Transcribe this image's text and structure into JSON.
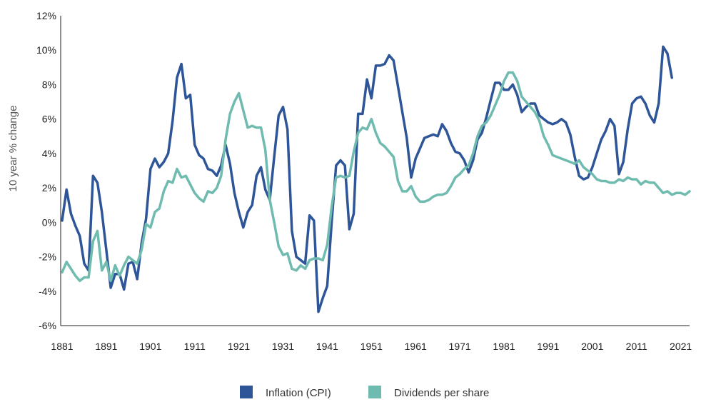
{
  "chart_data": {
    "type": "line",
    "title": "",
    "xlabel": "",
    "ylabel": "10 year % change",
    "xlim": [
      1881,
      2023
    ],
    "ylim": [
      -6,
      12
    ],
    "x_ticks": [
      {
        "value": 1881,
        "label": "1881"
      },
      {
        "value": 1891,
        "label": "1891"
      },
      {
        "value": 1901,
        "label": "1901"
      },
      {
        "value": 1911,
        "label": "1911"
      },
      {
        "value": 1921,
        "label": "1921"
      },
      {
        "value": 1931,
        "label": "1931"
      },
      {
        "value": 1941,
        "label": "1941"
      },
      {
        "value": 1951,
        "label": "1951"
      },
      {
        "value": 1961,
        "label": "1961"
      },
      {
        "value": 1971,
        "label": "1971"
      },
      {
        "value": 1981,
        "label": "1981"
      },
      {
        "value": 1991,
        "label": "1991"
      },
      {
        "value": 2001,
        "label": "2001"
      },
      {
        "value": 2011,
        "label": "2011"
      },
      {
        "value": 2021,
        "label": "2021"
      }
    ],
    "y_ticks": [
      {
        "value": 12,
        "label": "12%"
      },
      {
        "value": 10,
        "label": "10%"
      },
      {
        "value": 8,
        "label": "8%"
      },
      {
        "value": 6,
        "label": "6%"
      },
      {
        "value": 4,
        "label": "4%"
      },
      {
        "value": 2,
        "label": "2%"
      },
      {
        "value": 0,
        "label": "0%"
      },
      {
        "value": -2,
        "label": "-2%"
      },
      {
        "value": -4,
        "label": "-4%"
      },
      {
        "value": -6,
        "label": "-6%"
      }
    ],
    "legend_position": "bottom-center",
    "series": [
      {
        "name": "Inflation (CPI)",
        "color": "#2e5597",
        "points": [
          [
            1881,
            0.1
          ],
          [
            1882,
            1.9
          ],
          [
            1883,
            0.5
          ],
          [
            1884,
            -0.2
          ],
          [
            1885,
            -0.8
          ],
          [
            1886,
            -2.4
          ],
          [
            1887,
            -2.8
          ],
          [
            1888,
            2.7
          ],
          [
            1889,
            2.3
          ],
          [
            1890,
            0.6
          ],
          [
            1891,
            -1.6
          ],
          [
            1892,
            -3.8
          ],
          [
            1893,
            -3.0
          ],
          [
            1894,
            -3.0
          ],
          [
            1895,
            -3.9
          ],
          [
            1896,
            -2.4
          ],
          [
            1897,
            -2.3
          ],
          [
            1898,
            -3.3
          ],
          [
            1899,
            -1.2
          ],
          [
            1900,
            0.2
          ],
          [
            1901,
            3.1
          ],
          [
            1902,
            3.7
          ],
          [
            1903,
            3.2
          ],
          [
            1904,
            3.5
          ],
          [
            1905,
            4.0
          ],
          [
            1906,
            5.9
          ],
          [
            1907,
            8.4
          ],
          [
            1908,
            9.2
          ],
          [
            1909,
            7.2
          ],
          [
            1910,
            7.4
          ],
          [
            1911,
            4.5
          ],
          [
            1912,
            3.9
          ],
          [
            1913,
            3.7
          ],
          [
            1914,
            3.1
          ],
          [
            1915,
            3.0
          ],
          [
            1916,
            2.7
          ],
          [
            1917,
            3.3
          ],
          [
            1918,
            4.5
          ],
          [
            1919,
            3.4
          ],
          [
            1920,
            1.7
          ],
          [
            1921,
            0.6
          ],
          [
            1922,
            -0.3
          ],
          [
            1923,
            0.6
          ],
          [
            1924,
            1.0
          ],
          [
            1925,
            2.7
          ],
          [
            1926,
            3.2
          ],
          [
            1927,
            1.9
          ],
          [
            1928,
            1.3
          ],
          [
            1929,
            3.8
          ],
          [
            1930,
            6.2
          ],
          [
            1931,
            6.7
          ],
          [
            1932,
            5.4
          ],
          [
            1933,
            -0.5
          ],
          [
            1934,
            -2.0
          ],
          [
            1935,
            -2.2
          ],
          [
            1936,
            -2.4
          ],
          [
            1937,
            0.4
          ],
          [
            1938,
            0.1
          ],
          [
            1939,
            -5.2
          ],
          [
            1940,
            -4.4
          ],
          [
            1941,
            -3.7
          ],
          [
            1942,
            0.0
          ],
          [
            1943,
            3.3
          ],
          [
            1944,
            3.6
          ],
          [
            1945,
            3.3
          ],
          [
            1946,
            -0.4
          ],
          [
            1947,
            0.5
          ],
          [
            1948,
            6.3
          ],
          [
            1949,
            6.3
          ],
          [
            1950,
            8.3
          ],
          [
            1951,
            7.2
          ],
          [
            1952,
            9.1
          ],
          [
            1953,
            9.1
          ],
          [
            1954,
            9.2
          ],
          [
            1955,
            9.7
          ],
          [
            1956,
            9.4
          ],
          [
            1957,
            7.9
          ],
          [
            1958,
            6.4
          ],
          [
            1959,
            4.9
          ],
          [
            1960,
            2.6
          ],
          [
            1961,
            3.7
          ],
          [
            1962,
            4.3
          ],
          [
            1963,
            4.9
          ],
          [
            1964,
            5.0
          ],
          [
            1965,
            5.1
          ],
          [
            1966,
            5.0
          ],
          [
            1967,
            5.7
          ],
          [
            1968,
            5.3
          ],
          [
            1969,
            4.6
          ],
          [
            1970,
            4.1
          ],
          [
            1971,
            4.0
          ],
          [
            1972,
            3.6
          ],
          [
            1973,
            2.9
          ],
          [
            1974,
            3.6
          ],
          [
            1975,
            4.8
          ],
          [
            1976,
            5.2
          ],
          [
            1977,
            6.1
          ],
          [
            1978,
            7.1
          ],
          [
            1979,
            8.1
          ],
          [
            1980,
            8.1
          ],
          [
            1981,
            7.7
          ],
          [
            1982,
            7.7
          ],
          [
            1983,
            8.0
          ],
          [
            1984,
            7.4
          ],
          [
            1985,
            6.4
          ],
          [
            1986,
            6.7
          ],
          [
            1987,
            6.9
          ],
          [
            1988,
            6.9
          ],
          [
            1989,
            6.2
          ],
          [
            1990,
            6.0
          ],
          [
            1991,
            5.8
          ],
          [
            1992,
            5.7
          ],
          [
            1993,
            5.8
          ],
          [
            1994,
            6.0
          ],
          [
            1995,
            5.8
          ],
          [
            1996,
            5.1
          ],
          [
            1997,
            3.8
          ],
          [
            1998,
            2.7
          ],
          [
            1999,
            2.5
          ],
          [
            2000,
            2.6
          ],
          [
            2001,
            3.2
          ],
          [
            2002,
            4.0
          ],
          [
            2003,
            4.8
          ],
          [
            2004,
            5.3
          ],
          [
            2005,
            6.0
          ],
          [
            2006,
            5.6
          ],
          [
            2007,
            2.8
          ],
          [
            2008,
            3.5
          ],
          [
            2009,
            5.4
          ],
          [
            2010,
            6.9
          ],
          [
            2011,
            7.2
          ],
          [
            2012,
            7.3
          ],
          [
            2013,
            6.9
          ],
          [
            2014,
            6.2
          ],
          [
            2015,
            5.8
          ],
          [
            2016,
            6.9
          ],
          [
            2017,
            10.2
          ],
          [
            2018,
            9.8
          ],
          [
            2019,
            8.4
          ]
        ]
      },
      {
        "name": "Dividends per share",
        "color": "#6fbbaf",
        "points": [
          [
            1881,
            -2.9
          ],
          [
            1882,
            -2.3
          ],
          [
            1883,
            -2.7
          ],
          [
            1884,
            -3.1
          ],
          [
            1885,
            -3.4
          ],
          [
            1886,
            -3.2
          ],
          [
            1887,
            -3.2
          ],
          [
            1888,
            -1.1
          ],
          [
            1889,
            -0.5
          ],
          [
            1890,
            -2.8
          ],
          [
            1891,
            -2.3
          ],
          [
            1892,
            -3.4
          ],
          [
            1893,
            -2.5
          ],
          [
            1894,
            -3.1
          ],
          [
            1895,
            -2.5
          ],
          [
            1896,
            -2.0
          ],
          [
            1897,
            -2.2
          ],
          [
            1898,
            -2.4
          ],
          [
            1899,
            -1.6
          ],
          [
            1900,
            -0.1
          ],
          [
            1901,
            -0.3
          ],
          [
            1902,
            0.6
          ],
          [
            1903,
            0.8
          ],
          [
            1904,
            1.8
          ],
          [
            1905,
            2.4
          ],
          [
            1906,
            2.3
          ],
          [
            1907,
            3.1
          ],
          [
            1908,
            2.6
          ],
          [
            1909,
            2.7
          ],
          [
            1910,
            2.2
          ],
          [
            1911,
            1.7
          ],
          [
            1912,
            1.4
          ],
          [
            1913,
            1.2
          ],
          [
            1914,
            1.8
          ],
          [
            1915,
            1.7
          ],
          [
            1916,
            2.0
          ],
          [
            1917,
            2.7
          ],
          [
            1918,
            4.8
          ],
          [
            1919,
            6.3
          ],
          [
            1920,
            7.0
          ],
          [
            1921,
            7.5
          ],
          [
            1922,
            6.5
          ],
          [
            1923,
            5.5
          ],
          [
            1924,
            5.6
          ],
          [
            1925,
            5.5
          ],
          [
            1926,
            5.5
          ],
          [
            1927,
            4.2
          ],
          [
            1928,
            1.3
          ],
          [
            1929,
            0.0
          ],
          [
            1930,
            -1.4
          ],
          [
            1931,
            -1.9
          ],
          [
            1932,
            -1.8
          ],
          [
            1933,
            -2.7
          ],
          [
            1934,
            -2.8
          ],
          [
            1935,
            -2.5
          ],
          [
            1936,
            -2.7
          ],
          [
            1937,
            -2.2
          ],
          [
            1938,
            -2.1
          ],
          [
            1939,
            -2.1
          ],
          [
            1940,
            -2.2
          ],
          [
            1941,
            -1.3
          ],
          [
            1942,
            0.9
          ],
          [
            1943,
            2.6
          ],
          [
            1944,
            2.7
          ],
          [
            1945,
            2.6
          ],
          [
            1946,
            2.7
          ],
          [
            1947,
            4.1
          ],
          [
            1948,
            5.2
          ],
          [
            1949,
            5.5
          ],
          [
            1950,
            5.4
          ],
          [
            1951,
            6.0
          ],
          [
            1952,
            5.2
          ],
          [
            1953,
            4.6
          ],
          [
            1954,
            4.4
          ],
          [
            1955,
            4.1
          ],
          [
            1956,
            3.8
          ],
          [
            1957,
            2.4
          ],
          [
            1958,
            1.8
          ],
          [
            1959,
            1.8
          ],
          [
            1960,
            2.1
          ],
          [
            1961,
            1.5
          ],
          [
            1962,
            1.2
          ],
          [
            1963,
            1.2
          ],
          [
            1964,
            1.3
          ],
          [
            1965,
            1.5
          ],
          [
            1966,
            1.6
          ],
          [
            1967,
            1.6
          ],
          [
            1968,
            1.7
          ],
          [
            1969,
            2.1
          ],
          [
            1970,
            2.6
          ],
          [
            1971,
            2.8
          ],
          [
            1972,
            3.1
          ],
          [
            1973,
            3.3
          ],
          [
            1974,
            4.0
          ],
          [
            1975,
            5.0
          ],
          [
            1976,
            5.6
          ],
          [
            1977,
            5.8
          ],
          [
            1978,
            6.2
          ],
          [
            1979,
            6.8
          ],
          [
            1980,
            7.4
          ],
          [
            1981,
            8.2
          ],
          [
            1982,
            8.7
          ],
          [
            1983,
            8.7
          ],
          [
            1984,
            8.2
          ],
          [
            1985,
            7.3
          ],
          [
            1986,
            7.0
          ],
          [
            1987,
            6.7
          ],
          [
            1988,
            6.4
          ],
          [
            1989,
            5.9
          ],
          [
            1990,
            5.0
          ],
          [
            1991,
            4.5
          ],
          [
            1992,
            3.9
          ],
          [
            1993,
            3.8
          ],
          [
            1994,
            3.7
          ],
          [
            1995,
            3.6
          ],
          [
            1996,
            3.5
          ],
          [
            1997,
            3.4
          ],
          [
            1998,
            3.6
          ],
          [
            1999,
            3.2
          ],
          [
            2000,
            3.0
          ],
          [
            2001,
            2.8
          ],
          [
            2002,
            2.5
          ],
          [
            2003,
            2.4
          ],
          [
            2004,
            2.4
          ],
          [
            2005,
            2.3
          ],
          [
            2006,
            2.3
          ],
          [
            2007,
            2.5
          ],
          [
            2008,
            2.4
          ],
          [
            2009,
            2.6
          ],
          [
            2010,
            2.5
          ],
          [
            2011,
            2.5
          ],
          [
            2012,
            2.2
          ],
          [
            2013,
            2.4
          ],
          [
            2014,
            2.3
          ],
          [
            2015,
            2.3
          ],
          [
            2016,
            2.0
          ],
          [
            2017,
            1.7
          ],
          [
            2018,
            1.8
          ],
          [
            2019,
            1.6
          ],
          [
            2020,
            1.7
          ],
          [
            2021,
            1.7
          ],
          [
            2022,
            1.6
          ],
          [
            2023,
            1.8
          ]
        ]
      }
    ]
  }
}
